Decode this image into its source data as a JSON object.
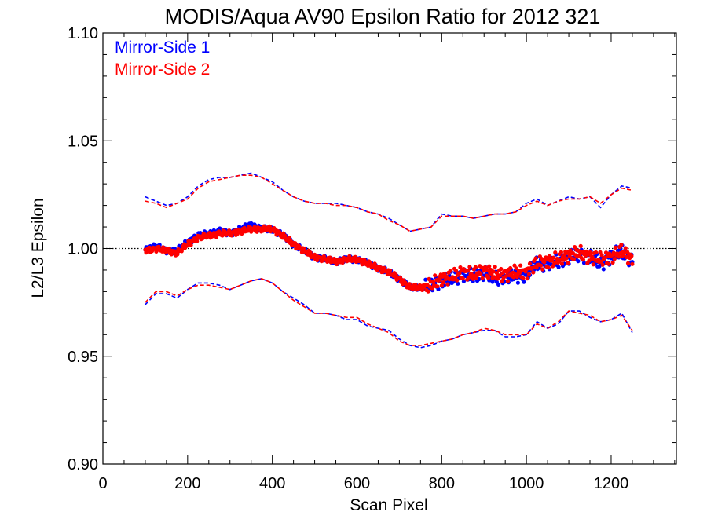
{
  "chart_data": {
    "type": "scatter",
    "title": "MODIS/Aqua AV90 Epsilon Ratio for 2012 321",
    "xlabel": "Scan Pixel",
    "ylabel": "L2/L3 Epsilon",
    "xlim": [
      0,
      1354
    ],
    "ylim": [
      0.9,
      1.1
    ],
    "xticks": [
      0,
      200,
      400,
      600,
      800,
      1000,
      1200
    ],
    "yticks": [
      0.9,
      0.95,
      1.0,
      1.05,
      1.1
    ],
    "xtick_labels": [
      "0",
      "200",
      "400",
      "600",
      "800",
      "1000",
      "1200"
    ],
    "ytick_labels": [
      "0.90",
      "0.95",
      "1.00",
      "1.05",
      "1.10"
    ],
    "reference_line": 1.0,
    "legend_position": "top-left",
    "series": [
      {
        "name": "Mirror-Side 1",
        "color": "#0000ff",
        "x": [
          100,
          125,
          150,
          175,
          200,
          225,
          250,
          275,
          300,
          325,
          350,
          375,
          400,
          425,
          450,
          475,
          500,
          525,
          550,
          575,
          600,
          625,
          650,
          675,
          700,
          725,
          750,
          775,
          800,
          825,
          850,
          875,
          900,
          925,
          950,
          975,
          1000,
          1025,
          1050,
          1075,
          1100,
          1125,
          1150,
          1175,
          1200,
          1225,
          1250
        ],
        "mean": [
          1.0,
          1.001,
          0.999,
          0.999,
          1.003,
          1.006,
          1.007,
          1.008,
          1.007,
          1.009,
          1.011,
          1.009,
          1.009,
          1.006,
          1.002,
          0.999,
          0.996,
          0.995,
          0.994,
          0.995,
          0.995,
          0.993,
          0.991,
          0.989,
          0.986,
          0.982,
          0.982,
          0.983,
          0.985,
          0.986,
          0.988,
          0.987,
          0.989,
          0.986,
          0.987,
          0.987,
          0.988,
          0.993,
          0.993,
          0.994,
          0.996,
          0.997,
          0.996,
          0.993,
          0.996,
          0.999,
          0.994
        ],
        "upper": [
          1.024,
          1.022,
          1.02,
          1.021,
          1.024,
          1.029,
          1.032,
          1.033,
          1.033,
          1.034,
          1.035,
          1.033,
          1.031,
          1.027,
          1.024,
          1.022,
          1.021,
          1.021,
          1.021,
          1.02,
          1.019,
          1.017,
          1.016,
          1.014,
          1.011,
          1.008,
          1.009,
          1.01,
          1.016,
          1.015,
          1.015,
          1.014,
          1.015,
          1.016,
          1.016,
          1.017,
          1.021,
          1.023,
          1.02,
          1.022,
          1.024,
          1.023,
          1.024,
          1.019,
          1.025,
          1.029,
          1.028
        ],
        "lower": [
          0.974,
          0.979,
          0.979,
          0.977,
          0.981,
          0.984,
          0.984,
          0.983,
          0.981,
          0.983,
          0.985,
          0.986,
          0.984,
          0.98,
          0.977,
          0.974,
          0.97,
          0.97,
          0.969,
          0.967,
          0.967,
          0.964,
          0.963,
          0.962,
          0.958,
          0.955,
          0.954,
          0.955,
          0.957,
          0.958,
          0.96,
          0.961,
          0.962,
          0.962,
          0.959,
          0.959,
          0.96,
          0.966,
          0.963,
          0.965,
          0.971,
          0.971,
          0.968,
          0.966,
          0.967,
          0.97,
          0.961
        ]
      },
      {
        "name": "Mirror-Side 2",
        "color": "#ff0000",
        "x": [
          100,
          125,
          150,
          175,
          200,
          225,
          250,
          275,
          300,
          325,
          350,
          375,
          400,
          425,
          450,
          475,
          500,
          525,
          550,
          575,
          600,
          625,
          650,
          675,
          700,
          725,
          750,
          775,
          800,
          825,
          850,
          875,
          900,
          925,
          950,
          975,
          1000,
          1025,
          1050,
          1075,
          1100,
          1125,
          1150,
          1175,
          1200,
          1225,
          1250
        ],
        "mean": [
          0.999,
          1.0,
          0.999,
          0.998,
          1.002,
          1.005,
          1.006,
          1.007,
          1.007,
          1.008,
          1.009,
          1.009,
          1.009,
          1.006,
          1.002,
          0.999,
          0.996,
          0.995,
          0.994,
          0.995,
          0.995,
          0.993,
          0.991,
          0.989,
          0.986,
          0.982,
          0.982,
          0.983,
          0.986,
          0.987,
          0.989,
          0.988,
          0.99,
          0.988,
          0.988,
          0.989,
          0.989,
          0.993,
          0.994,
          0.995,
          0.997,
          0.998,
          0.996,
          0.995,
          0.996,
          0.999,
          0.995
        ],
        "upper": [
          1.022,
          1.021,
          1.019,
          1.021,
          1.023,
          1.028,
          1.031,
          1.032,
          1.033,
          1.034,
          1.034,
          1.033,
          1.03,
          1.027,
          1.024,
          1.022,
          1.021,
          1.021,
          1.02,
          1.02,
          1.019,
          1.017,
          1.016,
          1.013,
          1.011,
          1.008,
          1.009,
          1.01,
          1.015,
          1.015,
          1.015,
          1.014,
          1.015,
          1.016,
          1.016,
          1.017,
          1.02,
          1.022,
          1.02,
          1.022,
          1.023,
          1.023,
          1.024,
          1.021,
          1.025,
          1.028,
          1.027
        ],
        "lower": [
          0.975,
          0.98,
          0.98,
          0.978,
          0.981,
          0.983,
          0.983,
          0.982,
          0.981,
          0.983,
          0.985,
          0.986,
          0.984,
          0.98,
          0.976,
          0.973,
          0.97,
          0.97,
          0.969,
          0.968,
          0.968,
          0.965,
          0.963,
          0.961,
          0.957,
          0.955,
          0.955,
          0.956,
          0.957,
          0.958,
          0.96,
          0.961,
          0.963,
          0.962,
          0.96,
          0.96,
          0.96,
          0.965,
          0.963,
          0.966,
          0.971,
          0.97,
          0.969,
          0.966,
          0.967,
          0.969,
          0.962
        ]
      }
    ]
  }
}
